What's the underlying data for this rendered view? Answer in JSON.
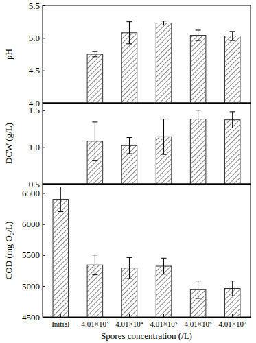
{
  "chart_data": [
    {
      "type": "bar",
      "y_label": "pH",
      "tick_labels": "y",
      "color": "#333333",
      "values": [
        null,
        4.75,
        5.08,
        5.23,
        5.04,
        5.03
      ],
      "errors": [
        null,
        0.04,
        0.17,
        0.03,
        0.08,
        0.07
      ],
      "ylim": [
        4.0,
        5.5
      ],
      "yticks": [
        {
          "value": 4.0,
          "label": "4.0"
        },
        4.5,
        {
          "value": 5.0,
          "label": "5.0"
        },
        5.5
      ]
    },
    {
      "type": "bar",
      "y_label": "DCW (g/L)",
      "tick_labels": "y",
      "color": "#333333",
      "values": [
        null,
        1.08,
        1.02,
        1.14,
        1.38,
        1.37
      ],
      "errors": [
        null,
        0.26,
        0.11,
        0.24,
        0.12,
        0.11
      ],
      "ylim": [
        0.5,
        1.6
      ],
      "yticks": [
        0.5,
        {
          "value": 1.0,
          "label": "1.0"
        },
        1.5
      ]
    },
    {
      "type": "bar",
      "y_label": "COD (mg O₂/L)",
      "x_label": "Spores concentration (/L)",
      "color": "#333333",
      "categories": [
        "Initial",
        "4.01×10³",
        "4.01×10⁴",
        "4.01×10⁵",
        "4.01×10⁶",
        "4.01×10⁷"
      ],
      "values": [
        6400,
        5340,
        5290,
        5320,
        4940,
        4960
      ],
      "errors": [
        200,
        160,
        170,
        130,
        140,
        120
      ],
      "ylim": [
        4500,
        6650
      ],
      "yticks": [
        4500,
        5000,
        5500,
        6000,
        6500
      ]
    }
  ]
}
